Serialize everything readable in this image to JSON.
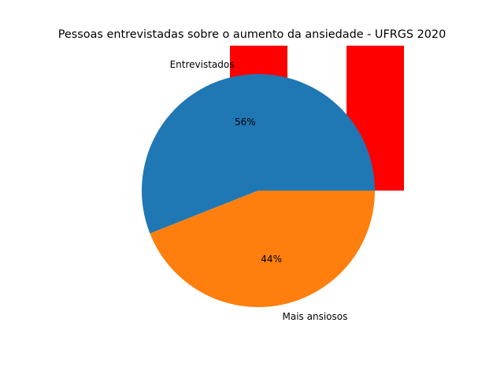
{
  "chart_data": {
    "type": "pie",
    "title": "Pessoas entrevistadas sobre o aumento da ansiedade - UFRGS 2020",
    "slices": [
      {
        "label": "Entrevistados",
        "value": 56,
        "pct_label": "56%",
        "color": "#1f77b4"
      },
      {
        "label": "Mais ansiosos",
        "value": 44,
        "pct_label": "44%",
        "color": "#ff7f0e"
      }
    ],
    "background_bars": {
      "color": "#ff0000",
      "values": [
        1,
        1.15
      ]
    }
  }
}
